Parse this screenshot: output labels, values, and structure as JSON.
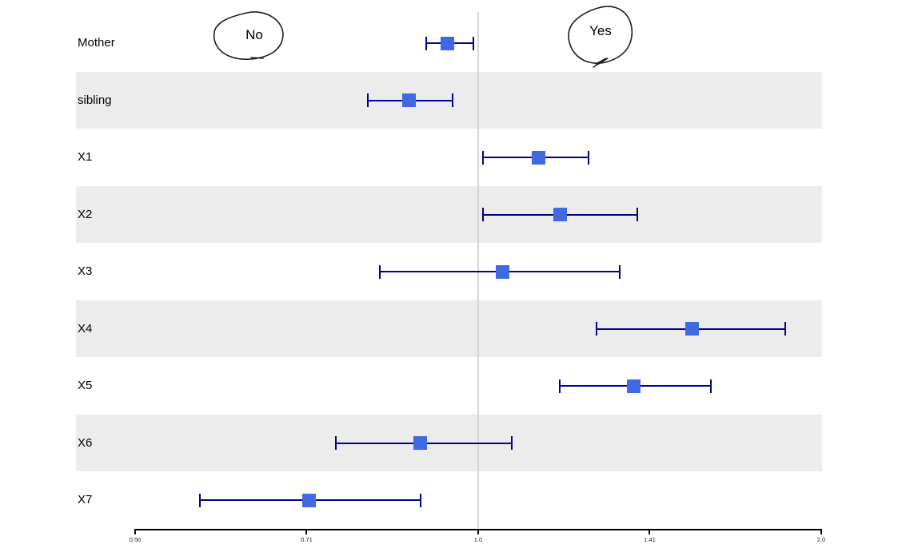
{
  "chart_data": {
    "type": "forest",
    "title": "",
    "xlabel": "",
    "ylabel": "",
    "x_scale": "log2",
    "xlim": [
      0.5,
      2.0
    ],
    "grid": false,
    "legend_position": "none",
    "reference_line": 1.0,
    "x_ticks": [
      {
        "value": 0.5,
        "label": "0.50"
      },
      {
        "value": 0.7071,
        "label": "0.71"
      },
      {
        "value": 1.0,
        "label": "1.0"
      },
      {
        "value": 1.4142,
        "label": "1.41"
      },
      {
        "value": 2.0,
        "label": "2.0"
      }
    ],
    "rows": [
      {
        "label": "Mother",
        "or": 0.94,
        "lo": 0.9,
        "hi": 0.99,
        "shaded": false
      },
      {
        "label": "sibling",
        "or": 0.87,
        "lo": 0.8,
        "hi": 0.95,
        "shaded": true
      },
      {
        "label": "X1",
        "or": 1.13,
        "lo": 1.01,
        "hi": 1.25,
        "shaded": false
      },
      {
        "label": "X2",
        "or": 1.18,
        "lo": 1.01,
        "hi": 1.38,
        "shaded": true
      },
      {
        "label": "X3",
        "or": 1.05,
        "lo": 0.82,
        "hi": 1.33,
        "shaded": false
      },
      {
        "label": "X4",
        "or": 1.54,
        "lo": 1.27,
        "hi": 1.86,
        "shaded": true
      },
      {
        "label": "X5",
        "or": 1.37,
        "lo": 1.18,
        "hi": 1.6,
        "shaded": false
      },
      {
        "label": "X6",
        "or": 0.89,
        "lo": 0.75,
        "hi": 1.07,
        "shaded": true
      },
      {
        "label": "X7",
        "or": 0.71,
        "lo": 0.57,
        "hi": 0.89,
        "shaded": false
      }
    ]
  },
  "annotations": {
    "left_label": "No",
    "right_label": "Yes"
  },
  "colors": {
    "marker": "#4169e1",
    "error_bar": "#00008b",
    "band": "#ececec",
    "reference_line": "#d6d6d6",
    "axis": "#000000",
    "text": "#000000",
    "background": "#ffffff",
    "scribble": "#1a1a1a"
  }
}
